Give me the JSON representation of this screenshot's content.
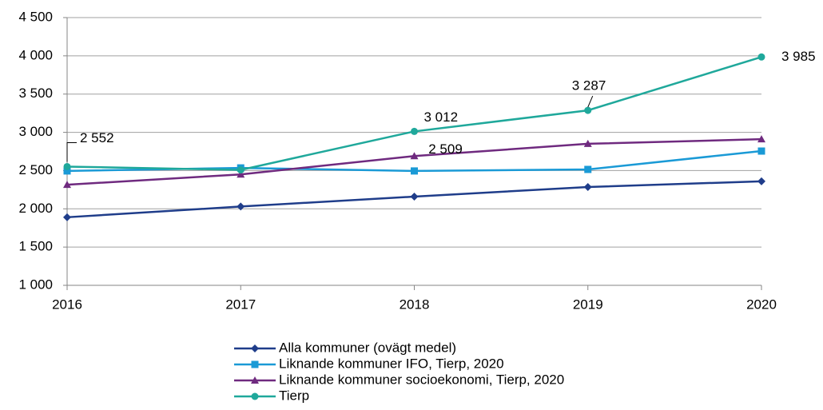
{
  "chart_data": {
    "type": "line",
    "categories": [
      "2016",
      "2017",
      "2018",
      "2019",
      "2020"
    ],
    "series": [
      {
        "name": "Alla kommuner (ovägt medel)",
        "color": "#1f3d8a",
        "marker": "diamond",
        "values": [
          1890,
          2030,
          2160,
          2285,
          2360
        ]
      },
      {
        "name": "Liknande kommuner IFO, Tierp, 2020",
        "color": "#1a9ad6",
        "marker": "square",
        "values": [
          2495,
          2535,
          2495,
          2515,
          2755
        ]
      },
      {
        "name": "Liknande kommuner socioekonomi, Tierp, 2020",
        "color": "#6f2a7f",
        "marker": "triangle",
        "values": [
          2315,
          2450,
          2690,
          2850,
          2910
        ]
      },
      {
        "name": "Tierp",
        "color": "#1fa89b",
        "marker": "circle",
        "values": [
          2552,
          2509,
          3012,
          3287,
          3985
        ],
        "value_labels": [
          "2 552",
          "2 509",
          "3 012",
          "3 287",
          "3 985"
        ]
      }
    ],
    "ylim": [
      1000,
      4500
    ],
    "yticks": [
      {
        "value": 1000,
        "label": "1 000"
      },
      {
        "value": 1500,
        "label": "1 500"
      },
      {
        "value": 2000,
        "label": "2 000"
      },
      {
        "value": 2500,
        "label": "2 500"
      },
      {
        "value": 3000,
        "label": "3 000"
      },
      {
        "value": 3500,
        "label": "3 500"
      },
      {
        "value": 4000,
        "label": "4 000"
      },
      {
        "value": 4500,
        "label": "4 500"
      }
    ],
    "grid": true,
    "legend": "bottom"
  }
}
